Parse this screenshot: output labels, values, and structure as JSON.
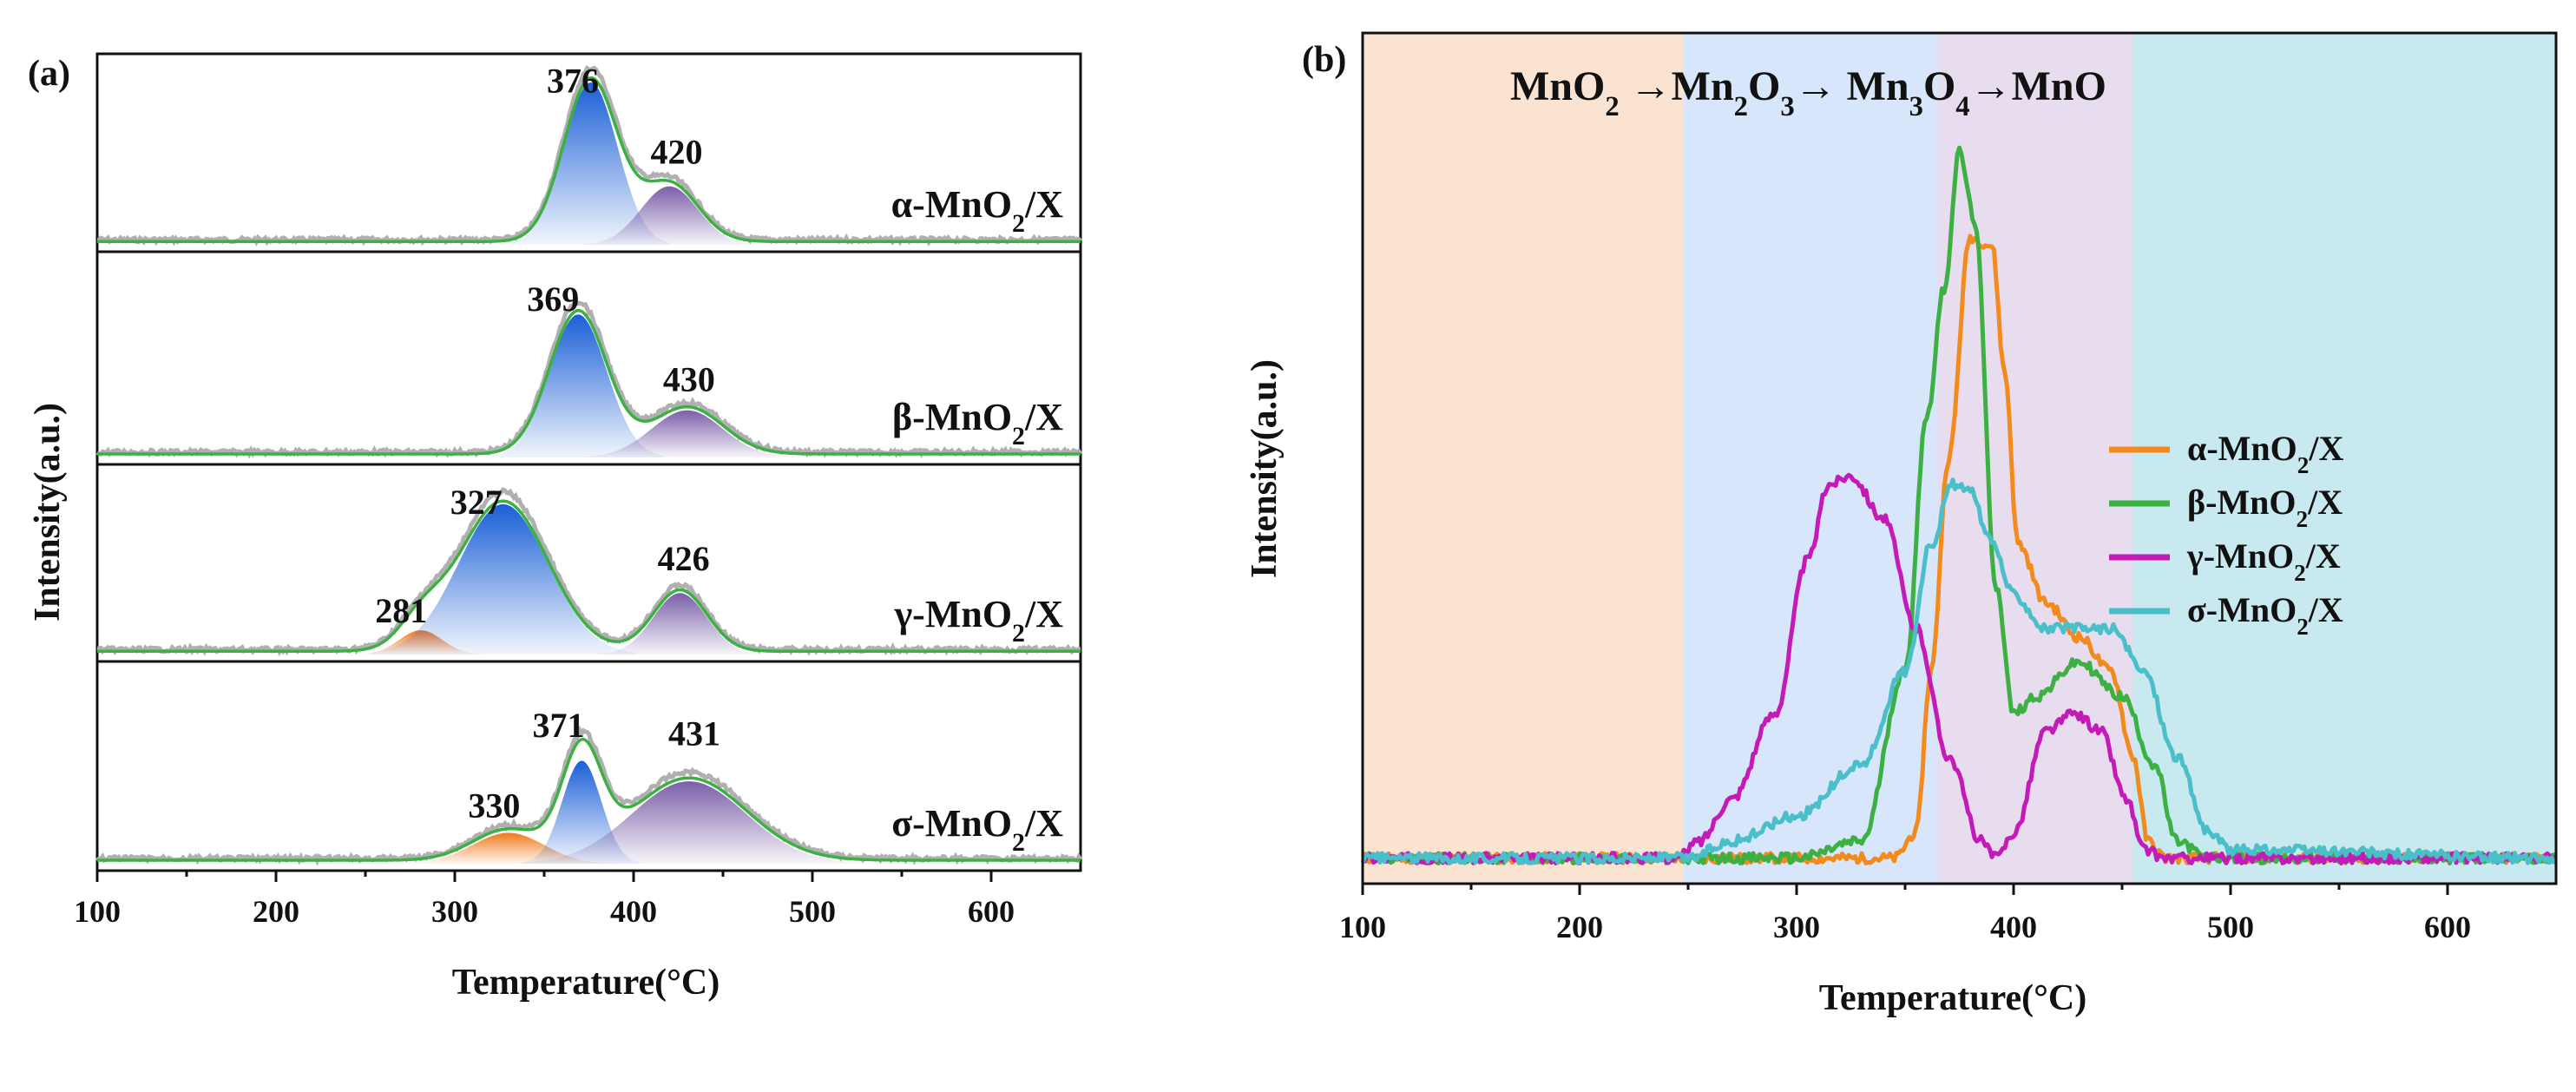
{
  "figure": {
    "panels": [
      "(a)",
      "(b)"
    ]
  },
  "chart_data": [
    {
      "type": "area",
      "panel_label": "(a)",
      "title": "",
      "xlabel": "Temperature(°C)",
      "ylabel": "Intensity(a.u.)",
      "xlim": [
        100,
        650
      ],
      "xticks": [
        100,
        200,
        300,
        400,
        500,
        600
      ],
      "yticks": [],
      "colors": {
        "blue_peak": "#1a5fd6",
        "purple_peak": "#7a5fa8",
        "orange_peak": "#f07a1e",
        "fit": "#3cb043",
        "raw": "#b0b0b0"
      },
      "stacks": [
        {
          "name_parts": [
            "α-MnO",
            "2",
            "/X"
          ],
          "background": 0.02,
          "peaks": [
            {
              "center": 376,
              "height": 1.0,
              "width": 15,
              "color": "blue"
            },
            {
              "center": 420,
              "height": 0.36,
              "width": 16,
              "color": "purple"
            }
          ],
          "labels": [
            {
              "text": "376",
              "x": 366,
              "y": 0.94
            },
            {
              "text": "420",
              "x": 424,
              "y": 0.5
            }
          ]
        },
        {
          "name_parts": [
            "β-MnO",
            "2",
            "/X"
          ],
          "background": 0.02,
          "peaks": [
            {
              "center": 369,
              "height": 0.82,
              "width": 16,
              "color": "blue"
            },
            {
              "center": 430,
              "height": 0.27,
              "width": 20,
              "color": "purple"
            }
          ],
          "labels": [
            {
              "text": "369",
              "x": 355,
              "y": 0.84
            },
            {
              "text": "430",
              "x": 431,
              "y": 0.38
            }
          ]
        },
        {
          "name_parts": [
            "γ-MnO",
            "2",
            "/X"
          ],
          "background": 0.02,
          "peaks": [
            {
              "center": 281,
              "height": 0.15,
              "width": 12,
              "color": "orange"
            },
            {
              "center": 327,
              "height": 0.93,
              "width": 25,
              "color": "blue"
            },
            {
              "center": 426,
              "height": 0.38,
              "width": 15,
              "color": "purple"
            }
          ],
          "labels": [
            {
              "text": "281",
              "x": 270,
              "y": 0.2
            },
            {
              "text": "327",
              "x": 312,
              "y": 0.87
            },
            {
              "text": "426",
              "x": 428,
              "y": 0.52
            }
          ]
        },
        {
          "name_parts": [
            "σ-MnO",
            "2",
            "/X"
          ],
          "background": 0.02,
          "peaks": [
            {
              "center": 330,
              "height": 0.18,
              "width": 20,
              "color": "orange"
            },
            {
              "center": 371,
              "height": 0.6,
              "width": 11,
              "color": "blue"
            },
            {
              "center": 431,
              "height": 0.48,
              "width": 32,
              "color": "purple"
            }
          ],
          "labels": [
            {
              "text": "330",
              "x": 322,
              "y": 0.27
            },
            {
              "text": "371",
              "x": 358,
              "y": 0.74
            },
            {
              "text": "431",
              "x": 434,
              "y": 0.69
            }
          ]
        }
      ]
    },
    {
      "type": "line",
      "panel_label": "(b)",
      "title": "",
      "xlabel": "Temperature(°C)",
      "ylabel": "Intensity(a.u.)",
      "xlim": [
        100,
        650
      ],
      "ylim": [
        0,
        1.0
      ],
      "xticks": [
        100,
        200,
        300,
        400,
        500,
        600
      ],
      "annotation_parts": [
        "MnO",
        "2",
        " →Mn",
        "2",
        "O",
        "3",
        "→ Mn",
        "3",
        "O",
        "4",
        "→MnO"
      ],
      "regions": [
        {
          "x0": 100,
          "x1": 248,
          "color": "#fbe3d2"
        },
        {
          "x0": 248,
          "x1": 365,
          "color": "#d7e6fa"
        },
        {
          "x0": 365,
          "x1": 455,
          "color": "#e8dcef"
        },
        {
          "x0": 455,
          "x1": 650,
          "color": "#c7e9ef"
        }
      ],
      "legend_position": "right",
      "series": [
        {
          "name_parts": [
            "α-MnO",
            "2",
            "/X"
          ],
          "color": "#f28a1e",
          "points": [
            [
              100,
              0.03
            ],
            [
              260,
              0.03
            ],
            [
              320,
              0.03
            ],
            [
              345,
              0.03
            ],
            [
              355,
              0.06
            ],
            [
              362,
              0.25
            ],
            [
              370,
              0.5
            ],
            [
              380,
              0.76
            ],
            [
              390,
              0.75
            ],
            [
              396,
              0.6
            ],
            [
              402,
              0.4
            ],
            [
              415,
              0.33
            ],
            [
              430,
              0.29
            ],
            [
              445,
              0.25
            ],
            [
              455,
              0.15
            ],
            [
              462,
              0.05
            ],
            [
              470,
              0.03
            ],
            [
              650,
              0.03
            ]
          ]
        },
        {
          "name_parts": [
            "β-MnO",
            "2",
            "/X"
          ],
          "color": "#3cb043",
          "points": [
            [
              100,
              0.03
            ],
            [
              250,
              0.03
            ],
            [
              300,
              0.03
            ],
            [
              330,
              0.05
            ],
            [
              350,
              0.25
            ],
            [
              360,
              0.55
            ],
            [
              368,
              0.7
            ],
            [
              375,
              0.86
            ],
            [
              382,
              0.78
            ],
            [
              392,
              0.35
            ],
            [
              400,
              0.2
            ],
            [
              410,
              0.22
            ],
            [
              430,
              0.26
            ],
            [
              450,
              0.22
            ],
            [
              465,
              0.14
            ],
            [
              475,
              0.05
            ],
            [
              490,
              0.03
            ],
            [
              650,
              0.03
            ]
          ]
        },
        {
          "name_parts": [
            "γ-MnO",
            "2",
            "/X"
          ],
          "color": "#c41ab8",
          "points": [
            [
              100,
              0.03
            ],
            [
              200,
              0.03
            ],
            [
              245,
              0.03
            ],
            [
              255,
              0.05
            ],
            [
              270,
              0.1
            ],
            [
              290,
              0.2
            ],
            [
              305,
              0.38
            ],
            [
              315,
              0.47
            ],
            [
              325,
              0.48
            ],
            [
              340,
              0.43
            ],
            [
              355,
              0.3
            ],
            [
              370,
              0.15
            ],
            [
              385,
              0.05
            ],
            [
              392,
              0.03
            ],
            [
              400,
              0.06
            ],
            [
              415,
              0.18
            ],
            [
              428,
              0.2
            ],
            [
              440,
              0.18
            ],
            [
              452,
              0.1
            ],
            [
              460,
              0.04
            ],
            [
              470,
              0.03
            ],
            [
              650,
              0.03
            ]
          ]
        },
        {
          "name_parts": [
            "σ-MnO",
            "2",
            "/X"
          ],
          "color": "#4bbfc9",
          "points": [
            [
              100,
              0.03
            ],
            [
              250,
              0.03
            ],
            [
              270,
              0.05
            ],
            [
              300,
              0.08
            ],
            [
              330,
              0.14
            ],
            [
              350,
              0.25
            ],
            [
              362,
              0.4
            ],
            [
              372,
              0.47
            ],
            [
              380,
              0.46
            ],
            [
              390,
              0.4
            ],
            [
              400,
              0.34
            ],
            [
              415,
              0.3
            ],
            [
              430,
              0.3
            ],
            [
              445,
              0.3
            ],
            [
              460,
              0.25
            ],
            [
              475,
              0.15
            ],
            [
              490,
              0.06
            ],
            [
              500,
              0.04
            ],
            [
              650,
              0.03
            ]
          ]
        }
      ]
    }
  ]
}
